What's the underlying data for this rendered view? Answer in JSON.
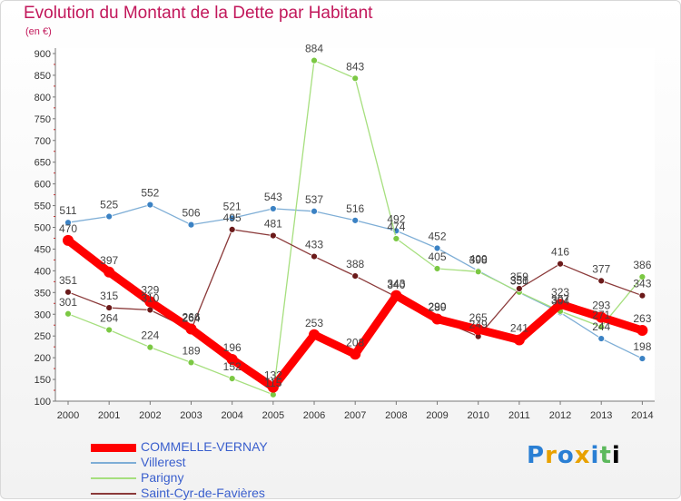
{
  "header": {
    "title": "Evolution du Montant de la Dette par Habitant",
    "subtitle": "(en €)"
  },
  "logo": {
    "text": "Proxiti",
    "letters": [
      "P",
      "r",
      "o",
      "x",
      "i",
      "t",
      "i"
    ]
  },
  "chart_data": {
    "type": "line",
    "title": "Evolution du Montant de la Dette par Habitant",
    "subtitle": "(en €)",
    "xlabel": "",
    "ylabel": "",
    "ylim": [
      100,
      900
    ],
    "yticks": [
      100,
      150,
      200,
      250,
      300,
      350,
      400,
      450,
      500,
      550,
      600,
      650,
      700,
      750,
      800,
      850,
      900
    ],
    "grid": false,
    "legend_position": "bottom-left",
    "x": [
      "2000",
      "2001",
      "2002",
      "2003",
      "2004",
      "2005",
      "2006",
      "2007",
      "2008",
      "2009",
      "2010",
      "2011",
      "2012",
      "2013",
      "2014"
    ],
    "series": [
      {
        "name": "Villerest",
        "color": "#7eaed6",
        "marker": "#3b82c4",
        "emphasis": false,
        "values": [
          511,
          525,
          552,
          506,
          521,
          543,
          537,
          516,
          492,
          452,
          400,
          350,
          304,
          244,
          198
        ]
      },
      {
        "name": "Parigny",
        "color": "#a6df7e",
        "marker": "#7bc843",
        "emphasis": false,
        "values": [
          301,
          264,
          224,
          189,
          152,
          115,
          884,
          843,
          474,
          405,
          398,
          351,
          307,
          271,
          386
        ]
      },
      {
        "name": "Saint-Cyr-de-Favières",
        "color": "#8b3a3a",
        "marker": "#6b1a1a",
        "emphasis": false,
        "values": [
          351,
          315,
          310,
          264,
          495,
          481,
          433,
          388,
          340,
          290,
          249,
          359,
          416,
          377,
          343
        ]
      },
      {
        "name": "COMMELLE-VERNAY",
        "color": "#ff0000",
        "marker": "#ff0000",
        "emphasis": true,
        "values": [
          470,
          397,
          329,
          266,
          196,
          132,
          253,
          208,
          343,
          289,
          265,
          241,
          323,
          293,
          263
        ]
      }
    ]
  }
}
